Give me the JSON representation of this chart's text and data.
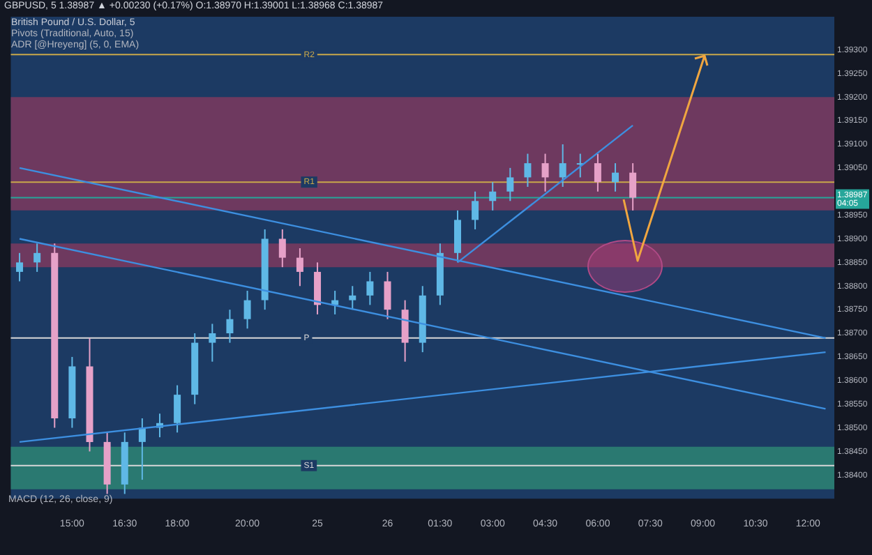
{
  "chart_data": {
    "type": "candlestick",
    "title": "British Pound / U.S. Dollar, 5",
    "subtitle": "GBPUSD, 5  1.38987 ▲ +0.00230 (+0.17%)  O:1.38970 H:1.39001 L:1.38968 C:1.38987",
    "annotations": [
      "Pivots (Traditional, Auto, 15)",
      "ADR [@Hreyeng] (5, 0, EMA)",
      "MACD (12, 26, close, 9)",
      "04:05"
    ],
    "categories": [
      null,
      null,
      null,
      "15:00",
      null,
      null,
      "16:30",
      null,
      null,
      "18:00",
      null,
      null,
      null,
      "20:00",
      null,
      null,
      null,
      "25",
      null,
      null,
      null,
      "26",
      null,
      null,
      "01:30",
      null,
      null,
      "03:00",
      null,
      null,
      "04:30",
      null,
      null,
      "06:00",
      null,
      null,
      "07:30",
      null,
      null,
      "09:00",
      null,
      null,
      "10:30",
      null,
      null,
      "12:00",
      null
    ],
    "ohlc": [
      [
        1.3883,
        1.3887,
        1.3881,
        1.3885
      ],
      [
        1.3885,
        1.3889,
        1.3883,
        1.3887
      ],
      [
        1.3887,
        1.3889,
        1.385,
        1.3852
      ],
      [
        1.3852,
        1.3865,
        1.385,
        1.3863
      ],
      [
        1.3863,
        1.3869,
        1.3845,
        1.3847
      ],
      [
        1.3847,
        1.3849,
        1.3836,
        1.3838
      ],
      [
        1.3838,
        1.3849,
        1.3836,
        1.3847
      ],
      [
        1.3847,
        1.3852,
        1.3839,
        1.385
      ],
      [
        1.385,
        1.3853,
        1.3848,
        1.3851
      ],
      [
        1.3851,
        1.3859,
        1.3849,
        1.3857
      ],
      [
        1.3857,
        1.387,
        1.3855,
        1.3868
      ],
      [
        1.3868,
        1.3872,
        1.3864,
        1.387
      ],
      [
        1.387,
        1.3875,
        1.3868,
        1.3873
      ],
      [
        1.3873,
        1.3879,
        1.3871,
        1.3877
      ],
      [
        1.3877,
        1.3892,
        1.3875,
        1.389
      ],
      [
        1.389,
        1.3892,
        1.3884,
        1.3886
      ],
      [
        1.3886,
        1.3888,
        1.388,
        1.3883
      ],
      [
        1.3883,
        1.3885,
        1.3874,
        1.3876
      ],
      [
        1.3876,
        1.3879,
        1.3874,
        1.3877
      ],
      [
        1.3877,
        1.388,
        1.3875,
        1.3878
      ],
      [
        1.3878,
        1.3883,
        1.3876,
        1.3881
      ],
      [
        1.3881,
        1.3883,
        1.3873,
        1.3875
      ],
      [
        1.3875,
        1.3877,
        1.3864,
        1.3868
      ],
      [
        1.3868,
        1.388,
        1.3866,
        1.3878
      ],
      [
        1.3878,
        1.3889,
        1.3876,
        1.3887
      ],
      [
        1.3887,
        1.3896,
        1.3885,
        1.3894
      ],
      [
        1.3894,
        1.39,
        1.3892,
        1.3898
      ],
      [
        1.3898,
        1.3902,
        1.3896,
        1.39
      ],
      [
        1.39,
        1.3905,
        1.3898,
        1.3903
      ],
      [
        1.3903,
        1.3908,
        1.3901,
        1.3906
      ],
      [
        1.3906,
        1.3908,
        1.39,
        1.3903
      ],
      [
        1.3903,
        1.391,
        1.3901,
        1.3906
      ],
      [
        1.3906,
        1.3908,
        1.3903,
        1.3906
      ],
      [
        1.3906,
        1.3908,
        1.39,
        1.3902
      ],
      [
        1.3902,
        1.3906,
        1.39,
        1.3904
      ],
      [
        1.3904,
        1.3906,
        1.3896,
        1.38987
      ],
      null,
      null,
      null,
      null,
      null,
      null,
      null,
      null,
      null,
      null,
      null
    ],
    "colors": [
      "#5fb8e6",
      "#5fb8e6",
      "#e6a1c8",
      "#5fb8e6",
      "#e6a1c8",
      "#e6a1c8",
      "#5fb8e6",
      "#5fb8e6",
      "#5fb8e6",
      "#5fb8e6",
      "#5fb8e6",
      "#5fb8e6",
      "#5fb8e6",
      "#5fb8e6",
      "#5fb8e6",
      "#e6a1c8",
      "#e6a1c8",
      "#e6a1c8",
      "#5fb8e6",
      "#5fb8e6",
      "#5fb8e6",
      "#e6a1c8",
      "#e6a1c8",
      "#5fb8e6",
      "#5fb8e6",
      "#5fb8e6",
      "#5fb8e6",
      "#5fb8e6",
      "#5fb8e6",
      "#5fb8e6",
      "#e6a1c8",
      "#5fb8e6",
      "#5fb8e6",
      "#e6a1c8",
      "#5fb8e6",
      "#e6a1c8",
      null,
      null,
      null,
      null,
      null,
      null,
      null,
      null,
      null,
      null,
      null
    ],
    "series": [
      {
        "type": "line",
        "color": "#3d8fe0",
        "values": [
          1.3905,
          null,
          null,
          null,
          null,
          null,
          null,
          null,
          null,
          null,
          null,
          null,
          null,
          null,
          null,
          null,
          null,
          null,
          null,
          null,
          null,
          null,
          null,
          null,
          null,
          null,
          null,
          null,
          null,
          null,
          null,
          null,
          null,
          null,
          null,
          null,
          null,
          null,
          null,
          null,
          null,
          null,
          null,
          null,
          null,
          null,
          1.3869
        ]
      },
      {
        "type": "line",
        "color": "#3d8fe0",
        "values": [
          1.389,
          null,
          null,
          null,
          null,
          null,
          null,
          null,
          null,
          null,
          null,
          null,
          null,
          null,
          null,
          null,
          null,
          null,
          null,
          null,
          null,
          null,
          null,
          null,
          null,
          null,
          null,
          null,
          null,
          null,
          null,
          null,
          null,
          null,
          null,
          null,
          null,
          null,
          null,
          null,
          null,
          null,
          null,
          null,
          null,
          null,
          1.3854
        ]
      },
      {
        "type": "line",
        "color": "#3d8fe0",
        "values": [
          1.3847,
          null,
          null,
          null,
          null,
          null,
          null,
          null,
          null,
          null,
          null,
          null,
          null,
          null,
          null,
          null,
          null,
          null,
          null,
          null,
          null,
          null,
          null,
          null,
          null,
          null,
          null,
          null,
          null,
          null,
          null,
          null,
          null,
          null,
          null,
          null,
          null,
          null,
          null,
          null,
          null,
          null,
          null,
          null,
          null,
          null,
          1.3866
        ]
      },
      {
        "type": "line",
        "color": "#3d8fe0",
        "values": [
          null,
          null,
          null,
          null,
          null,
          null,
          null,
          null,
          null,
          null,
          null,
          null,
          null,
          null,
          null,
          null,
          null,
          null,
          null,
          null,
          null,
          null,
          null,
          null,
          null,
          1.3885,
          null,
          null,
          null,
          null,
          null,
          null,
          null,
          null,
          null,
          1.3914,
          null,
          null,
          null,
          null,
          null,
          null,
          null,
          null,
          null,
          null,
          null
        ]
      }
    ],
    "ref_lines": [
      {
        "axis": "y",
        "value": 1.3929,
        "label": "R2",
        "color": "#c9a84a"
      },
      {
        "axis": "y",
        "value": 1.3902,
        "label": "R1",
        "color": "#c9a84a"
      },
      {
        "axis": "y",
        "value": 1.3869,
        "label": "P",
        "color": "#d8d8d8"
      },
      {
        "axis": "y",
        "value": 1.3842,
        "label": "S1",
        "color": "#d8d8d8"
      },
      {
        "axis": "y",
        "value": 1.38987,
        "label": "1.38987",
        "color": "#26a69a"
      }
    ],
    "bands": [
      {
        "axis": "y",
        "from": 1.3896,
        "to": 1.392,
        "color": "#8a3a5e"
      },
      {
        "axis": "y",
        "from": 1.3884,
        "to": 1.3889,
        "color": "#8a3a5e"
      },
      {
        "axis": "y",
        "from": 1.3837,
        "to": 1.3846,
        "color": "#2f8f76"
      }
    ],
    "ylim": [
      1.3835,
      1.3937
    ],
    "yticks": [
      {
        "value": 1.393,
        "label": "1.39300"
      },
      {
        "value": 1.3925,
        "label": "1.39250"
      },
      {
        "value": 1.392,
        "label": "1.39200"
      },
      {
        "value": 1.3915,
        "label": "1.39150"
      },
      {
        "value": 1.391,
        "label": "1.39100"
      },
      {
        "value": 1.3905,
        "label": "1.39050"
      },
      {
        "value": 1.3895,
        "label": "1.38950"
      },
      {
        "value": 1.389,
        "label": "1.38900"
      },
      {
        "value": 1.3885,
        "label": "1.38850"
      },
      {
        "value": 1.388,
        "label": "1.38800"
      },
      {
        "value": 1.3875,
        "label": "1.38750"
      },
      {
        "value": 1.387,
        "label": "1.38700"
      },
      {
        "value": 1.3865,
        "label": "1.38650"
      },
      {
        "value": 1.386,
        "label": "1.38600"
      },
      {
        "value": 1.3855,
        "label": "1.38550"
      },
      {
        "value": 1.385,
        "label": "1.38500"
      },
      {
        "value": 1.3845,
        "label": "1.38450"
      },
      {
        "value": 1.384,
        "label": "1.38400"
      }
    ],
    "grid": false,
    "legend": false
  }
}
